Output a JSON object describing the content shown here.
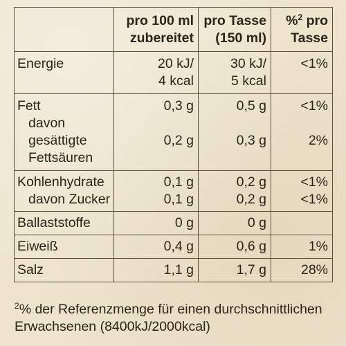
{
  "header": {
    "col1_line1": "pro 100 ml",
    "col1_line2": "zubereitet",
    "col2_line1": "pro Tasse",
    "col2_line2": "(150 ml)",
    "col3_sup": "2",
    "col3_line1_prefix": "%",
    "col3_line1_suffix": " pro",
    "col3_line2": "Tasse"
  },
  "rows": {
    "energie": {
      "label": "Energie",
      "v1a": "20 kJ/",
      "v1b": "4 kcal",
      "v2a": "30 kJ/",
      "v2b": "5 kcal",
      "pct": "<1%"
    },
    "fett": {
      "label": "Fett",
      "v1": "0,3 g",
      "v2": "0,5 g",
      "pct": "<1%"
    },
    "gesaettigt": {
      "label_a": "davon gesättigte",
      "label_b": "Fettsäuren",
      "v1": "0,2 g",
      "v2": "0,3 g",
      "pct": "2%"
    },
    "kohlenhydrate": {
      "label": "Kohlenhydrate",
      "v1": "0,1 g",
      "v2": "0,2 g",
      "pct": "<1%"
    },
    "zucker": {
      "label": "davon Zucker",
      "v1": "0,1 g",
      "v2": "0,2 g",
      "pct": "<1%"
    },
    "ballaststoffe": {
      "label": "Ballaststoffe",
      "v1": "0 g",
      "v2": "0 g",
      "pct": ""
    },
    "eiweiss": {
      "label": "Eiweiß",
      "v1": "0,4 g",
      "v2": "0,6 g",
      "pct": "1%"
    },
    "salz": {
      "label": "Salz",
      "v1": "1,1 g",
      "v2": "1,7 g",
      "pct": "28%"
    }
  },
  "footnote": {
    "sup": "2",
    "line1": "% der Referenzmenge für einen durchschnittlichen",
    "line2": "Erwachsenen (8400kJ/2000kcal)"
  }
}
